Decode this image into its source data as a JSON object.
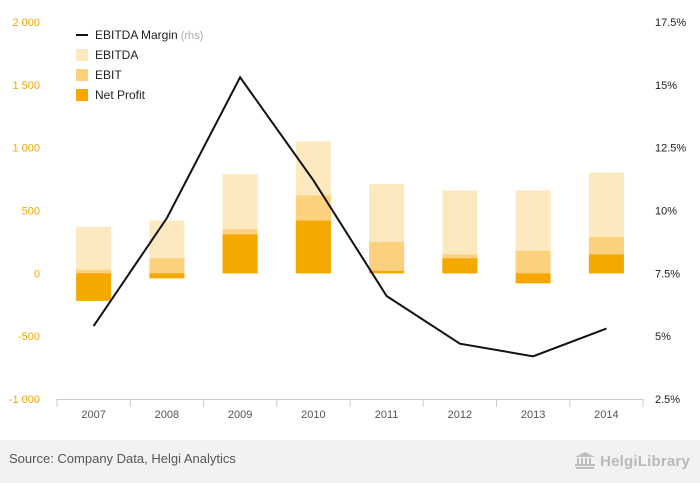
{
  "chart_data": {
    "type": "bar",
    "categories": [
      "2007",
      "2008",
      "2009",
      "2010",
      "2011",
      "2012",
      "2013",
      "2014"
    ],
    "series": [
      {
        "name": "EBITDA",
        "kind": "bar",
        "axis": "left",
        "color": "#fde9bf",
        "values": [
          370,
          420,
          790,
          1050,
          710,
          660,
          660,
          800
        ]
      },
      {
        "name": "EBIT",
        "kind": "bar",
        "axis": "left",
        "color": "#fbd17e",
        "values": [
          30,
          120,
          350,
          620,
          250,
          150,
          180,
          290
        ]
      },
      {
        "name": "Net Profit",
        "kind": "bar",
        "axis": "left",
        "color": "#f5a800",
        "values": [
          -220,
          -40,
          310,
          420,
          20,
          120,
          -80,
          150
        ]
      },
      {
        "name": "EBITDA Margin",
        "kind": "line",
        "axis": "right",
        "color": "#111111",
        "values": [
          5.4,
          9.7,
          15.3,
          11.2,
          6.6,
          4.7,
          4.2,
          5.3
        ]
      }
    ],
    "legend": {
      "position": "top-left",
      "items": [
        {
          "label": "EBITDA Margin",
          "suffix": "(rhs)",
          "kind": "line",
          "color": "#111111"
        },
        {
          "label": "EBITDA",
          "kind": "box",
          "color": "#fde9bf"
        },
        {
          "label": "EBIT",
          "kind": "box",
          "color": "#fbd17e"
        },
        {
          "label": "Net Profit",
          "kind": "box",
          "color": "#f5a800"
        }
      ]
    },
    "ylim": [
      -1000,
      2000
    ],
    "y_ticks": [
      2000,
      1500,
      1000,
      500,
      0,
      -500,
      -1000
    ],
    "y_tick_labels": [
      "2 000",
      "1 500",
      "1 000",
      "500",
      "0",
      "-500",
      "-1 000"
    ],
    "y2lim": [
      2.5,
      17.5
    ],
    "y2_ticks": [
      17.5,
      15,
      12.5,
      10,
      7.5,
      5,
      2.5
    ],
    "y2_tick_labels": [
      "17.5%",
      "15%",
      "12.5%",
      "10%",
      "7.5%",
      "5%",
      "2.5%"
    ],
    "grid": false,
    "colors": {
      "left_axis_text": "#f5a800",
      "right_axis_text": "#222222",
      "axis_line": "#cccccc"
    }
  },
  "footer": {
    "source": "Source: Company Data, Helgi Analytics",
    "brand": "HelgiLibrary",
    "brand_icon": "building-logo-icon"
  }
}
